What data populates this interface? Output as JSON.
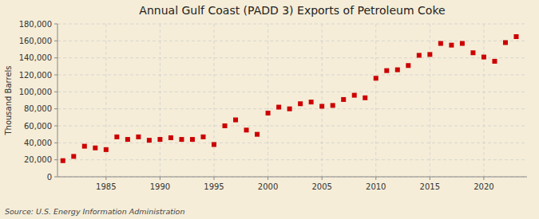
{
  "chart_data": {
    "type": "scatter",
    "title": "Annual Gulf Coast (PADD 3) Exports of Petroleum Coke",
    "y_label": "Thousand Barrels",
    "source": "Source: U.S. Energy Information Administration",
    "color": "#cc0000",
    "marker": "square",
    "grid": true,
    "x": [
      1981,
      1982,
      1983,
      1984,
      1985,
      1986,
      1987,
      1988,
      1989,
      1990,
      1991,
      1992,
      1993,
      1994,
      1995,
      1996,
      1997,
      1998,
      1999,
      2000,
      2001,
      2002,
      2003,
      2004,
      2005,
      2006,
      2007,
      2008,
      2009,
      2010,
      2011,
      2012,
      2013,
      2014,
      2015,
      2016,
      2017,
      2018,
      2019,
      2020,
      2021,
      2022,
      2023
    ],
    "values": [
      19000,
      24000,
      36000,
      34000,
      32000,
      47000,
      44000,
      47000,
      43000,
      44000,
      46000,
      44000,
      44000,
      47000,
      38000,
      60000,
      67000,
      55000,
      50000,
      75000,
      82000,
      80000,
      86000,
      88000,
      83000,
      84000,
      91000,
      96000,
      93000,
      116000,
      125000,
      126000,
      131000,
      143000,
      144000,
      157000,
      155000,
      157000,
      146000,
      141000,
      136000,
      158000,
      165000
    ],
    "xlim": [
      1980.5,
      2024
    ],
    "xticks": [
      1985,
      1990,
      1995,
      2000,
      2005,
      2010,
      2015,
      2020
    ],
    "ylim": [
      0,
      180000
    ],
    "yticks": [
      0,
      {
        "value": 20000,
        "label": "20,000"
      },
      {
        "value": 40000,
        "label": "40,000"
      },
      {
        "value": 60000,
        "label": "60,000"
      },
      {
        "value": 80000,
        "label": "80,000"
      },
      {
        "value": 100000,
        "label": "100,000"
      },
      {
        "value": 120000,
        "label": "120,000"
      },
      {
        "value": 140000,
        "label": "140,000"
      },
      {
        "value": 160000,
        "label": "160,000"
      },
      {
        "value": 180000,
        "label": "180,000"
      }
    ]
  }
}
